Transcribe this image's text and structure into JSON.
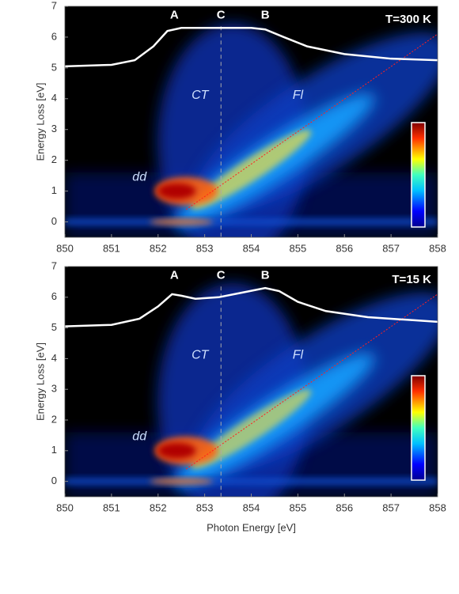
{
  "chart_data": [
    {
      "type": "line",
      "title": "T=300 K",
      "ylabel": "Energy Loss [eV]",
      "xlim": [
        850,
        858
      ],
      "ylim": [
        -0.5,
        7
      ],
      "xticks": [
        850,
        851,
        852,
        853,
        854,
        855,
        856,
        857,
        858
      ],
      "yticks": [
        0,
        1,
        2,
        3,
        4,
        5,
        6,
        7
      ],
      "annotations": [
        "CT",
        "Fl",
        "dd"
      ],
      "peaks": [
        {
          "label": "A",
          "x": 852.35
        },
        {
          "label": "C",
          "x": 853.35,
          "dashed": true
        },
        {
          "label": "B",
          "x": 854.3
        }
      ],
      "x": [
        850,
        851,
        851.5,
        851.9,
        852.2,
        852.5,
        853,
        853.5,
        854,
        854.3,
        854.7,
        855.2,
        856,
        857,
        858
      ],
      "series": [
        {
          "color": "#ffffff",
          "values": [
            5.05,
            5.1,
            5.25,
            5.7,
            6.2,
            6.3,
            6.3,
            6.3,
            6.3,
            6.25,
            6.0,
            5.7,
            5.45,
            5.3,
            5.25
          ]
        }
      ]
    },
    {
      "type": "line",
      "title": "T=15 K",
      "ylabel": "Energy Loss [eV]",
      "xlabel": "Photon Energy [eV]",
      "xlim": [
        850,
        858
      ],
      "ylim": [
        -0.5,
        7
      ],
      "xticks": [
        850,
        851,
        852,
        853,
        854,
        855,
        856,
        857,
        858
      ],
      "yticks": [
        0,
        1,
        2,
        3,
        4,
        5,
        6,
        7
      ],
      "annotations": [
        "CT",
        "Fl",
        "dd"
      ],
      "peaks": [
        {
          "label": "A",
          "x": 852.35
        },
        {
          "label": "C",
          "x": 853.35,
          "dashed": true
        },
        {
          "label": "B",
          "x": 854.3
        }
      ],
      "x": [
        850,
        851,
        851.6,
        852,
        852.3,
        852.5,
        852.8,
        853.3,
        853.8,
        854.3,
        854.6,
        855,
        855.6,
        856.5,
        857.5,
        858
      ],
      "series": [
        {
          "color": "#ffffff",
          "values": [
            5.05,
            5.1,
            5.3,
            5.7,
            6.1,
            6.05,
            5.95,
            6.0,
            6.15,
            6.3,
            6.2,
            5.85,
            5.55,
            5.35,
            5.25,
            5.2
          ]
        }
      ]
    }
  ]
}
